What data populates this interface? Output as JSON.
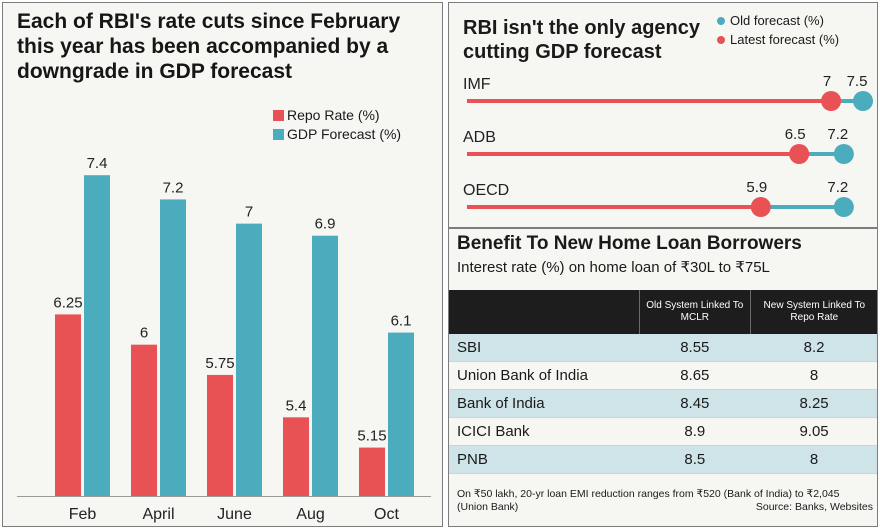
{
  "left_chart": {
    "title": "Each of RBI's rate cuts since February this year has been accompanied by a downgrade in GDP forecast",
    "legend": [
      {
        "label": "Repo Rate (%)",
        "color": "#e85254"
      },
      {
        "label": "GDP Forecast (%)",
        "color": "#4bacbd"
      }
    ]
  },
  "forecast_panel": {
    "title": "RBI isn't the only agency cutting GDP forecast",
    "legend": [
      {
        "label": "Old forecast (%)",
        "color": "#4bacbd"
      },
      {
        "label": "Latest forecast (%)",
        "color": "#e85254"
      }
    ]
  },
  "loan_table": {
    "title": "Benefit To New Home Loan Borrowers",
    "subtitle": "Interest rate (%) on home loan of ₹30L to ₹75L",
    "columns": [
      "",
      "Old System Linked To MCLR",
      "New System Linked To Repo Rate"
    ],
    "rows": [
      {
        "bank": "SBI",
        "old": "8.55",
        "new": "8.2"
      },
      {
        "bank": "Union Bank of India",
        "old": "8.65",
        "new": "8"
      },
      {
        "bank": "Bank of India",
        "old": "8.45",
        "new": "8.25"
      },
      {
        "bank": "ICICI Bank",
        "old": "8.9",
        "new": "9.05"
      },
      {
        "bank": "PNB",
        "old": "8.5",
        "new": "8"
      }
    ],
    "footnote": "On ₹50 lakh, 20-yr loan EMI reduction ranges from ₹520 (Bank of India) to ₹2,045 (Union Bank)",
    "source": "Source: Banks, Websites"
  },
  "chart_data": [
    {
      "type": "bar",
      "title": "Each of RBI's rate cuts since February this year has been accompanied by a downgrade in GDP forecast",
      "categories": [
        "Feb",
        "April",
        "June",
        "Aug",
        "Oct"
      ],
      "series": [
        {
          "name": "Repo Rate (%)",
          "color": "#e85254",
          "values": [
            6.25,
            6,
            5.75,
            5.4,
            5.15
          ],
          "labels": [
            "6.25",
            "6",
            "5.75",
            "5.4",
            "5.15"
          ]
        },
        {
          "name": "GDP Forecast (%)",
          "color": "#4bacbd",
          "values": [
            7.4,
            7.2,
            7,
            6.9,
            6.1
          ],
          "labels": [
            "7.4",
            "7.2",
            "7",
            "6.9",
            "6.1"
          ]
        }
      ],
      "ylim": [
        4.75,
        7.6
      ],
      "grid": false,
      "legend_position": "top-right"
    },
    {
      "type": "scatter",
      "title": "RBI isn't the only agency cutting GDP forecast",
      "categories": [
        "IMF",
        "ADB",
        "OECD"
      ],
      "series": [
        {
          "name": "Latest forecast (%)",
          "color": "#e85254",
          "values": [
            7,
            6.5,
            5.9
          ],
          "labels": [
            "7",
            "6.5",
            "5.9"
          ]
        },
        {
          "name": "Old forecast (%)",
          "color": "#4bacbd",
          "values": [
            7.5,
            7.2,
            7.2
          ],
          "labels": [
            "7.5",
            "7.2",
            "7.2"
          ]
        }
      ],
      "xlim": [
        1.3,
        7.5
      ],
      "legend_position": "top-right"
    }
  ]
}
